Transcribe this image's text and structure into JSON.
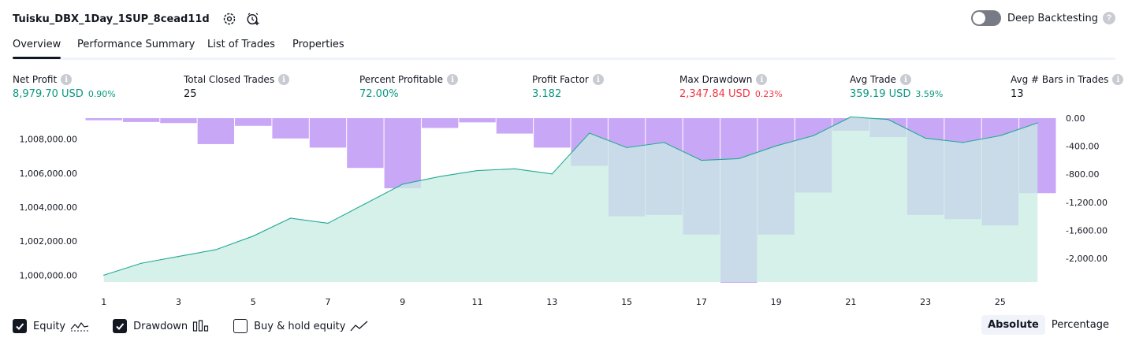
{
  "header": {
    "title": "Tuisku_DBX_1Day_1SUP_8cead11d",
    "settings_icon": "gear-icon",
    "add_alert_icon": "alarm-add-icon"
  },
  "deep_backtesting": {
    "label": "Deep Backtesting",
    "enabled": false,
    "help": "?"
  },
  "tabs": [
    {
      "label": "Overview",
      "active": true
    },
    {
      "label": "Performance Summary"
    },
    {
      "label": "List of Trades"
    },
    {
      "label": "Properties"
    }
  ],
  "metrics": [
    {
      "label": "Net Profit",
      "value": "8,979.70 USD",
      "sub": "0.90%",
      "color": "green"
    },
    {
      "label": "Total Closed Trades",
      "value": "25",
      "sub": "",
      "color": "dark"
    },
    {
      "label": "Percent Profitable",
      "value": "72.00%",
      "sub": "",
      "color": "green"
    },
    {
      "label": "Profit Factor",
      "value": "3.182",
      "sub": "",
      "color": "green"
    },
    {
      "label": "Max Drawdown",
      "value": "2,347.84 USD",
      "sub": "0.23%",
      "color": "red"
    },
    {
      "label": "Avg Trade",
      "value": "359.19 USD",
      "sub": "3.59%",
      "color": "green"
    },
    {
      "label": "Avg # Bars in Trades",
      "value": "13",
      "sub": "",
      "color": "dark"
    }
  ],
  "chart_data": {
    "type": "area",
    "x": [
      1,
      2,
      3,
      4,
      5,
      6,
      7,
      8,
      9,
      10,
      11,
      12,
      13,
      14,
      15,
      16,
      17,
      18,
      19,
      20,
      21,
      22,
      23,
      24,
      25,
      26
    ],
    "x_ticks": [
      "1",
      "3",
      "5",
      "7",
      "9",
      "11",
      "13",
      "15",
      "17",
      "19",
      "21",
      "23",
      "25"
    ],
    "series": [
      {
        "values": [
          1000000,
          1000700,
          1001100,
          1001500,
          1002300,
          1003350,
          1003050,
          1004200,
          1005350,
          1005800,
          1006150,
          1006250,
          1005950,
          1008350,
          1007500,
          1007800,
          1006750,
          1006850,
          1007600,
          1008200,
          1009300,
          1009150,
          1008050,
          1007800,
          1008200,
          1008950
        ]
      },
      {
        "values": [
          -30,
          -55,
          -70,
          -370,
          -110,
          -290,
          -420,
          -710,
          -1000,
          -140,
          -60,
          -220,
          -420,
          -680,
          -1400,
          -1380,
          -1660,
          -2347.84,
          -1660,
          -1060,
          -180,
          -270,
          -1380,
          -1440,
          -1530,
          -1070
        ]
      }
    ],
    "left_axis": {
      "range": [
        999600,
        1009600
      ],
      "ticks": [
        "1,000,000.00",
        "1,002,000.00",
        "1,004,000.00",
        "1,006,000.00",
        "1,008,000.00"
      ],
      "tick_values": [
        1000000,
        1002000,
        1004000,
        1006000,
        1008000
      ]
    },
    "right_axis": {
      "range": [
        -2347.84,
        0
      ],
      "ticks": [
        "0.00",
        "-400.00",
        "-800.00",
        "-1,200.00",
        "-1,600.00",
        "-2,000.00"
      ],
      "tick_values": [
        0,
        -400,
        -800,
        -1200,
        -1600,
        -2000
      ]
    },
    "colors": {
      "equity_line": "#22ab94",
      "equity_fill": "#c8ebe3",
      "drawdown": "#c9a7f7"
    },
    "grid": false
  },
  "legend": [
    {
      "label": "Equity",
      "checked": true,
      "icon": "equity-wave-icon"
    },
    {
      "label": "Drawdown",
      "checked": true,
      "icon": "drawdown-bars-icon"
    },
    {
      "label": "Buy & hold equity",
      "checked": false,
      "icon": "line-chart-icon"
    }
  ],
  "mode": {
    "options": [
      "Absolute",
      "Percentage"
    ],
    "selected": "Absolute"
  }
}
